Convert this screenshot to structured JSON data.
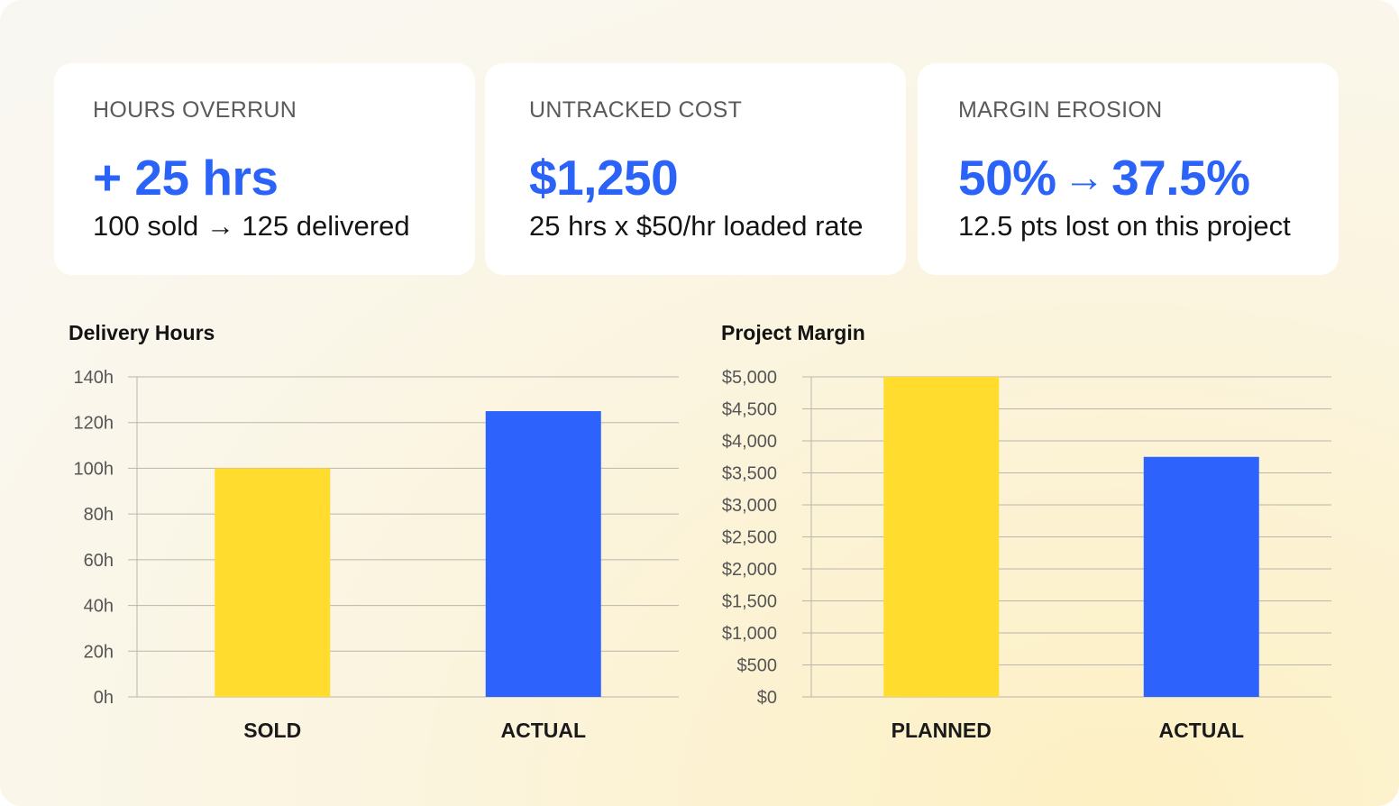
{
  "cards": [
    {
      "label": "HOURS OVERRUN",
      "value": "+ 25 hrs",
      "sub": "100 sold → 125 delivered"
    },
    {
      "label": "UNTRACKED COST",
      "value": "$1,250",
      "sub": "25 hrs x $50/hr loaded rate"
    },
    {
      "label": "MARGIN EROSION",
      "value_from": "50%",
      "value_arrow": "→",
      "value_to": "37.5%",
      "sub": "12.5 pts lost on this project"
    }
  ],
  "colors": {
    "yellow": "#ffdc2e",
    "blue": "#2d63fc",
    "accent": "#2b63f8"
  },
  "chart_data": [
    {
      "type": "bar",
      "title": "Delivery Hours",
      "categories": [
        "SOLD",
        "ACTUAL"
      ],
      "values": [
        100,
        125
      ],
      "ylim": [
        0,
        140
      ],
      "yticks": [
        "0h",
        "20h",
        "40h",
        "60h",
        "80h",
        "100h",
        "120h",
        "140h"
      ],
      "bar_colors": [
        "#ffdc2e",
        "#2d63fc"
      ],
      "grid": true
    },
    {
      "type": "bar",
      "title": "Project Margin",
      "categories": [
        "PLANNED",
        "ACTUAL"
      ],
      "values": [
        5000,
        3750
      ],
      "ylim": [
        0,
        5000
      ],
      "yticks": [
        "$0",
        "$500",
        "$1,000",
        "$1,500",
        "$2,000",
        "$2,500",
        "$3,000",
        "$3,500",
        "$4,000",
        "$4,500",
        "$5,000"
      ],
      "bar_colors": [
        "#ffdc2e",
        "#2d63fc"
      ],
      "grid": true
    }
  ]
}
